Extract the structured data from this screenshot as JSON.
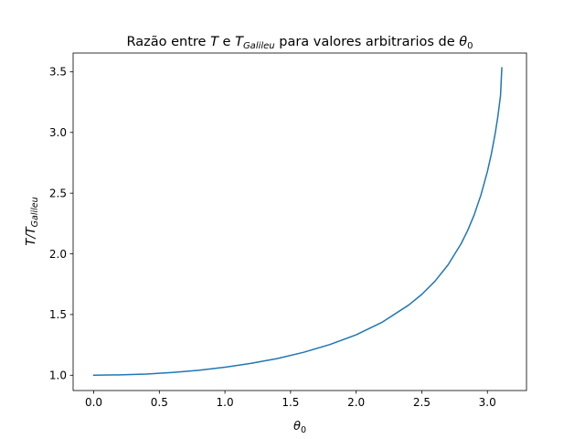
{
  "chart_data": {
    "type": "line",
    "title": {
      "t1": "Razão entre ",
      "t2": "T",
      "t3": " e ",
      "t4": "T",
      "t5": "Galileu",
      "t6": " para valores arbitrarios de ",
      "t7": "θ",
      "t8": "0"
    },
    "xlabel": {
      "main": "θ",
      "sub": "0"
    },
    "ylabel": {
      "main": "T/T",
      "sub": "Galileu"
    },
    "xlim": [
      -0.157,
      3.298
    ],
    "ylim": [
      0.874,
      3.654
    ],
    "xticks": [
      {
        "value": 0.0,
        "label": "0.0"
      },
      {
        "value": 0.5,
        "label": "0.5"
      },
      {
        "value": 1.0,
        "label": "1.0"
      },
      {
        "value": 1.5,
        "label": "1.5"
      },
      {
        "value": 2.0,
        "label": "2.0"
      },
      {
        "value": 2.5,
        "label": "2.5"
      },
      {
        "value": 3.0,
        "label": "3.0"
      }
    ],
    "yticks": [
      {
        "value": 1.0,
        "label": "1.0"
      },
      {
        "value": 1.5,
        "label": "1.5"
      },
      {
        "value": 2.0,
        "label": "2.0"
      },
      {
        "value": 2.5,
        "label": "2.5"
      },
      {
        "value": 3.0,
        "label": "3.0"
      },
      {
        "value": 3.5,
        "label": "3.5"
      }
    ],
    "grid": false,
    "colors": {
      "line": "#1f77b4"
    },
    "series": [
      {
        "x": [
          0.0,
          0.2,
          0.4,
          0.6,
          0.8,
          1.0,
          1.2,
          1.4,
          1.6,
          1.8,
          2.0,
          2.2,
          2.4,
          2.5,
          2.6,
          2.7,
          2.8,
          2.85,
          2.9,
          2.95,
          3.0,
          3.03,
          3.06,
          3.08,
          3.1,
          3.11
        ],
        "y": [
          1.0,
          1.003,
          1.01,
          1.023,
          1.041,
          1.066,
          1.098,
          1.138,
          1.189,
          1.253,
          1.333,
          1.438,
          1.578,
          1.666,
          1.774,
          1.909,
          2.084,
          2.193,
          2.323,
          2.482,
          2.678,
          2.822,
          2.995,
          3.133,
          3.303,
          3.532
        ]
      }
    ]
  }
}
